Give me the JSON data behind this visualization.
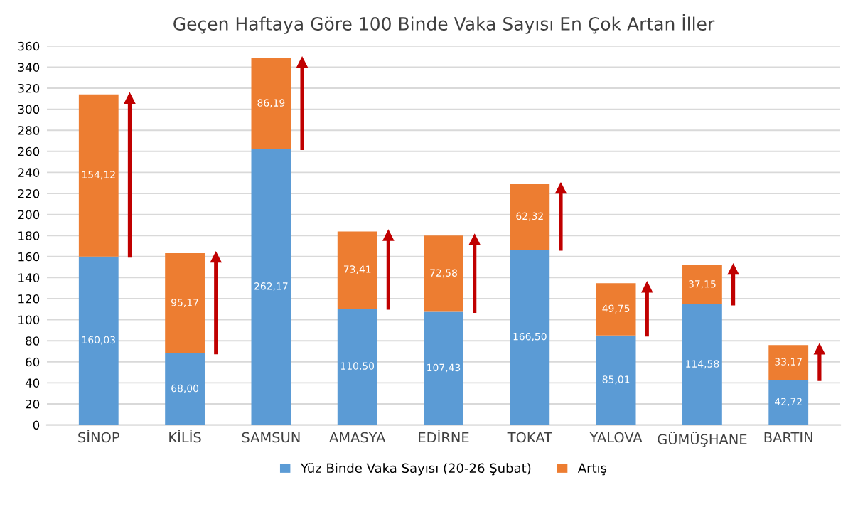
{
  "chart_data": {
    "type": "bar",
    "title": "Geçen Haftaya Göre 100 Binde Vaka Sayısı En Çok Artan İller",
    "categories": [
      "SİNOP",
      "KİLİS",
      "SAMSUN",
      "AMASYA",
      "EDİRNE",
      "TOKAT",
      "YALOVA",
      "GÜMÜŞHANE",
      "BARTIN"
    ],
    "stacked": true,
    "series": [
      {
        "name": "Yüz Binde Vaka Sayısı (20-26 Şubat)",
        "color": "#5b9bd5",
        "values": [
          160.03,
          68.0,
          262.17,
          110.5,
          107.43,
          166.5,
          85.01,
          114.58,
          42.72
        ],
        "value_labels": [
          "160,03",
          "68,00",
          "262,17",
          "110,50",
          "107,43",
          "166,50",
          "85,01",
          "114,58",
          "42,72"
        ]
      },
      {
        "name": "Artış",
        "color": "#ed7d31",
        "values": [
          154.12,
          95.17,
          86.19,
          73.41,
          72.58,
          62.32,
          49.75,
          37.15,
          33.17
        ],
        "value_labels": [
          "154,12",
          "95,17",
          "86,19",
          "73,41",
          "72,58",
          "62,32",
          "49,75",
          "37,15",
          "33,17"
        ]
      }
    ],
    "ylim": [
      0,
      360
    ],
    "yticks": [
      0,
      20,
      40,
      60,
      80,
      100,
      120,
      140,
      160,
      180,
      200,
      220,
      240,
      260,
      280,
      300,
      320,
      340,
      360
    ],
    "grid": "y",
    "legend": "bottom"
  }
}
